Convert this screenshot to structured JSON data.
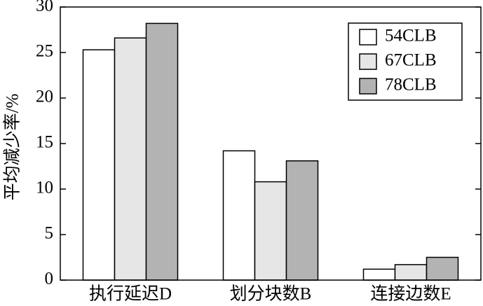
{
  "chart_data": {
    "type": "bar",
    "y_label": "平均减少率/%",
    "categories": [
      "执行延迟D",
      "划分块数B",
      "连接边数E"
    ],
    "series": [
      {
        "name": "54CLB",
        "color": "#ffffff",
        "values": [
          25.3,
          14.2,
          1.2
        ]
      },
      {
        "name": "67CLB",
        "color": "#e6e6e6",
        "values": [
          26.6,
          10.8,
          1.7
        ]
      },
      {
        "name": "78CLB",
        "color": "#b3b3b3",
        "values": [
          28.2,
          13.1,
          2.5
        ]
      }
    ],
    "ylim": [
      0,
      30
    ],
    "yticks": [
      0,
      5,
      10,
      15,
      20,
      25,
      30
    ],
    "legend": "upper right"
  }
}
